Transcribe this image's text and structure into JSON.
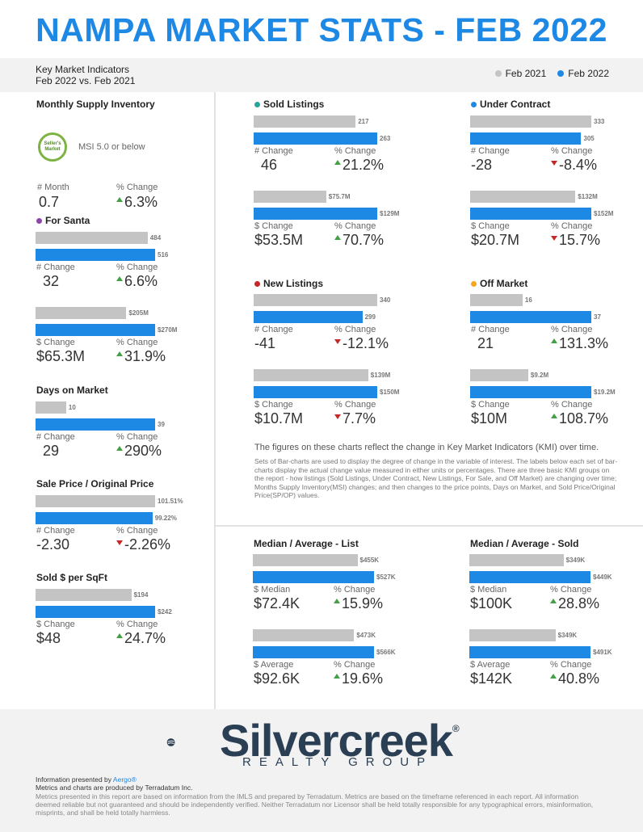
{
  "title": "NAMPA MARKET STATS - FEB 2022",
  "subtitle_line1": "Key Market Indicators",
  "subtitle_line2": "Feb 2022 vs. Feb 2021",
  "legend": {
    "prev": "Feb 2021",
    "curr": "Feb 2022"
  },
  "colors": {
    "prev": "#c4c4c4",
    "curr": "#1e88e5",
    "up": "#43a047",
    "down": "#c62828"
  },
  "msi": {
    "title": "Monthly Supply Inventory",
    "badge_line1": "Seller's",
    "badge_line2": "Market",
    "note": "MSI 5.0 or below",
    "month_label": "# Month",
    "month_value": "0.7",
    "pct_label": "% Change",
    "pct_value": "6.3%",
    "pct_dir": "up"
  },
  "chart_data": [
    {
      "type": "bar",
      "id": "for-sale-count",
      "title": "For Santa",
      "categories": [
        "Feb 2021",
        "Feb 2022"
      ],
      "values": [
        484,
        516
      ],
      "bar_labels": [
        "484",
        "516"
      ],
      "change_label": "# Change",
      "change_value": "32",
      "pct_label": "% Change",
      "pct_value": "6.6%",
      "pct_dir": "up",
      "dot": "#8e44ad"
    },
    {
      "type": "bar",
      "id": "for-sale-dollar",
      "categories": [
        "Feb 2021",
        "Feb 2022"
      ],
      "values": [
        205,
        270
      ],
      "bar_labels": [
        "$205M",
        "$270M"
      ],
      "change_label": "$ Change",
      "change_value": "$65.3M",
      "pct_label": "% Change",
      "pct_value": "31.9%",
      "pct_dir": "up"
    },
    {
      "type": "bar",
      "id": "days-on-market",
      "title": "Days on Market",
      "categories": [
        "Feb 2021",
        "Feb 2022"
      ],
      "values": [
        10,
        39
      ],
      "bar_labels": [
        "10",
        "39"
      ],
      "change_label": "# Change",
      "change_value": "29",
      "pct_label": "% Change",
      "pct_value": "290%",
      "pct_dir": "up"
    },
    {
      "type": "bar",
      "id": "sp-op",
      "title": "Sale Price / Original Price",
      "categories": [
        "Feb 2021",
        "Feb 2022"
      ],
      "values": [
        101.51,
        99.22
      ],
      "bar_labels": [
        "101.51%",
        "99.22%"
      ],
      "change_label": "# Change",
      "change_value": "-2.30",
      "pct_label": "% Change",
      "pct_value": "-2.26%",
      "pct_dir": "down"
    },
    {
      "type": "bar",
      "id": "sold-per-sqft",
      "title": "Sold $ per SqFt",
      "categories": [
        "Feb 2021",
        "Feb 2022"
      ],
      "values": [
        194,
        242
      ],
      "bar_labels": [
        "$194",
        "$242"
      ],
      "change_label": "$ Change",
      "change_value": "$48",
      "pct_label": "% Change",
      "pct_value": "24.7%",
      "pct_dir": "up"
    },
    {
      "type": "bar",
      "id": "sold-count",
      "title": "Sold Listings",
      "categories": [
        "Feb 2021",
        "Feb 2022"
      ],
      "values": [
        217,
        263
      ],
      "bar_labels": [
        "217",
        "263"
      ],
      "change_label": "# Change",
      "change_value": "46",
      "pct_label": "% Change",
      "pct_value": "21.2%",
      "pct_dir": "up",
      "dot": "#26a69a"
    },
    {
      "type": "bar",
      "id": "sold-dollar",
      "categories": [
        "Feb 2021",
        "Feb 2022"
      ],
      "values": [
        75.7,
        129
      ],
      "bar_labels": [
        "$75.7M",
        "$129M"
      ],
      "change_label": "$ Change",
      "change_value": "$53.5M",
      "pct_label": "% Change",
      "pct_value": "70.7%",
      "pct_dir": "up"
    },
    {
      "type": "bar",
      "id": "uc-count",
      "title": "Under Contract",
      "categories": [
        "Feb 2021",
        "Feb 2022"
      ],
      "values": [
        333,
        305
      ],
      "bar_labels": [
        "333",
        "305"
      ],
      "change_label": "# Change",
      "change_value": "-28",
      "pct_label": "% Change",
      "pct_value": "-8.4%",
      "pct_dir": "down",
      "dot": "#1e88e5"
    },
    {
      "type": "bar",
      "id": "uc-dollar",
      "categories": [
        "Feb 2021",
        "Feb 2022"
      ],
      "values": [
        132,
        152
      ],
      "bar_labels": [
        "$132M",
        "$152M"
      ],
      "change_label": "$ Change",
      "change_value": "$20.7M",
      "pct_label": "% Change",
      "pct_value": "15.7%",
      "pct_dir": "down"
    },
    {
      "type": "bar",
      "id": "new-count",
      "title": "New Listings",
      "categories": [
        "Feb 2021",
        "Feb 2022"
      ],
      "values": [
        340,
        299
      ],
      "bar_labels": [
        "340",
        "299"
      ],
      "change_label": "# Change",
      "change_value": "-41",
      "pct_label": "% Change",
      "pct_value": "-12.1%",
      "pct_dir": "down",
      "dot": "#c62828"
    },
    {
      "type": "bar",
      "id": "new-dollar",
      "categories": [
        "Feb 2021",
        "Feb 2022"
      ],
      "values": [
        139,
        150
      ],
      "bar_labels": [
        "$139M",
        "$150M"
      ],
      "change_label": "$ Change",
      "change_value": "$10.7M",
      "pct_label": "% Change",
      "pct_value": "7.7%",
      "pct_dir": "down"
    },
    {
      "type": "bar",
      "id": "off-count",
      "title": "Off Market",
      "categories": [
        "Feb 2021",
        "Feb 2022"
      ],
      "values": [
        16,
        37
      ],
      "bar_labels": [
        "16",
        "37"
      ],
      "change_label": "# Change",
      "change_value": "21",
      "pct_label": "% Change",
      "pct_value": "131.3%",
      "pct_dir": "up",
      "dot": "#f5a623"
    },
    {
      "type": "bar",
      "id": "off-dollar",
      "categories": [
        "Feb 2021",
        "Feb 2022"
      ],
      "values": [
        9.2,
        19.2
      ],
      "bar_labels": [
        "$9.2M",
        "$19.2M"
      ],
      "change_label": "$ Change",
      "change_value": "$10M",
      "pct_label": "% Change",
      "pct_value": "108.7%",
      "pct_dir": "up"
    },
    {
      "type": "bar",
      "id": "list-median",
      "title": "Median / Average - List",
      "categories": [
        "Feb 2021",
        "Feb 2022"
      ],
      "values": [
        455,
        527
      ],
      "bar_labels": [
        "$455K",
        "$527K"
      ],
      "change_label": "$ Median",
      "change_value": "$72.4K",
      "pct_label": "% Change",
      "pct_value": "15.9%",
      "pct_dir": "up"
    },
    {
      "type": "bar",
      "id": "list-average",
      "categories": [
        "Feb 2021",
        "Feb 2022"
      ],
      "values": [
        473,
        566
      ],
      "bar_labels": [
        "$473K",
        "$566K"
      ],
      "change_label": "$ Average",
      "change_value": "$92.6K",
      "pct_label": "% Change",
      "pct_value": "19.6%",
      "pct_dir": "up"
    },
    {
      "type": "bar",
      "id": "sold-median",
      "title": "Median / Average - Sold",
      "categories": [
        "Feb 2021",
        "Feb 2022"
      ],
      "values": [
        349,
        449
      ],
      "bar_labels": [
        "$349K",
        "$449K"
      ],
      "change_label": "$ Median",
      "change_value": "$100K",
      "pct_label": "% Change",
      "pct_value": "28.8%",
      "pct_dir": "up"
    },
    {
      "type": "bar",
      "id": "sold-average",
      "categories": [
        "Feb 2021",
        "Feb 2022"
      ],
      "values": [
        349,
        491
      ],
      "bar_labels": [
        "$349K",
        "$491K"
      ],
      "change_label": "$ Average",
      "change_value": "$142K",
      "pct_label": "% Change",
      "pct_value": "40.8%",
      "pct_dir": "up"
    }
  ],
  "description": {
    "main": "The figures on these charts reflect the change in Key Market Indicators (KMI) over time.",
    "detail": "Sets of Bar-charts are used to display the degree of change in the variable of interest. The labels below each set of bar-charts display the actual change value measured in either units or percentages. There are three basic KMI groups on the report - how listings (Sold Listings, Under Contract, New Listings, For Sale, and Off Market) are changing over time; Months Supply Inventory(MSI) changes; and then changes to the price points, Days on Market, and Sold Price/Original Price(SP/OP) values."
  },
  "logo": {
    "name": "Silvercreek",
    "mark": "®",
    "sub": "REALTY GROUP"
  },
  "footer": {
    "presented_prefix": "Information presented by ",
    "presented_by": "Aergo®",
    "produced": "Metrics and charts are produced by Terradatum Inc.",
    "disclaimer": "Metrics presented in this report are based on information from the IMLS and prepared by Terradatum. Metrics are based on the timeframe referenced in each report. All information deemed reliable but not guaranteed and should be independently verified. Neither Terradatum nor Licensor shall be held totally responsible for any typographical errors, misinformation, misprints, and shall be held totally harmless."
  }
}
